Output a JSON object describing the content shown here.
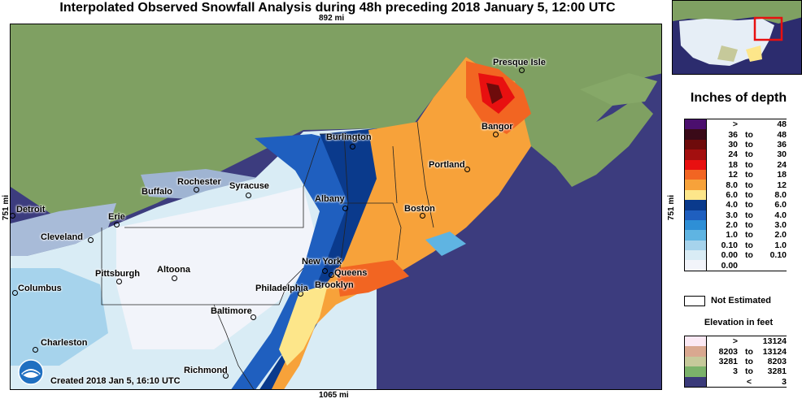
{
  "title": "Interpolated Observed Snowfall Analysis during 48h preceding 2018 January 5, 12:00 UTC",
  "dimensions": {
    "top": "892 mi",
    "bottom": "1065 mi",
    "left": "751 mi",
    "right": "751 mi"
  },
  "created": "Created 2018 Jan 5, 16:10 UTC",
  "cities": [
    {
      "name": "Presque Isle"
    },
    {
      "name": "Bangor"
    },
    {
      "name": "Burlington"
    },
    {
      "name": "Portland"
    },
    {
      "name": "Rochester"
    },
    {
      "name": "Syracuse"
    },
    {
      "name": "Buffalo"
    },
    {
      "name": "Albany"
    },
    {
      "name": "Boston"
    },
    {
      "name": "Detroit"
    },
    {
      "name": "Erie"
    },
    {
      "name": "Cleveland"
    },
    {
      "name": "New York"
    },
    {
      "name": "Queens"
    },
    {
      "name": "Pittsburgh"
    },
    {
      "name": "Altoona"
    },
    {
      "name": "Brooklyn"
    },
    {
      "name": "Columbus"
    },
    {
      "name": "Philadelphia"
    },
    {
      "name": "Baltimore"
    },
    {
      "name": "Charleston"
    },
    {
      "name": "Richmond"
    }
  ],
  "legend": {
    "title": "Inches of depth",
    "rows": [
      {
        "lo": ">",
        "to": "",
        "hi": "48",
        "color": "#4b0f6e"
      },
      {
        "lo": "36",
        "to": "to",
        "hi": "48",
        "color": "#3a0a18"
      },
      {
        "lo": "30",
        "to": "to",
        "hi": "36",
        "color": "#6e0b0b"
      },
      {
        "lo": "24",
        "to": "to",
        "hi": "30",
        "color": "#a30f0f"
      },
      {
        "lo": "18",
        "to": "to",
        "hi": "24",
        "color": "#e81010"
      },
      {
        "lo": "12",
        "to": "to",
        "hi": "18",
        "color": "#f26522"
      },
      {
        "lo": "8.0",
        "to": "to",
        "hi": "12",
        "color": "#f7a23a"
      },
      {
        "lo": "6.0",
        "to": "to",
        "hi": "8.0",
        "color": "#fde68a"
      },
      {
        "lo": "4.0",
        "to": "to",
        "hi": "6.0",
        "color": "#0a3a8c"
      },
      {
        "lo": "3.0",
        "to": "to",
        "hi": "4.0",
        "color": "#1f5fbf"
      },
      {
        "lo": "2.0",
        "to": "to",
        "hi": "3.0",
        "color": "#2e8fd6"
      },
      {
        "lo": "1.0",
        "to": "to",
        "hi": "2.0",
        "color": "#5fb4e2"
      },
      {
        "lo": "0.10",
        "to": "to",
        "hi": "1.0",
        "color": "#a6d3ec"
      },
      {
        "lo": "0.00",
        "to": "to",
        "hi": "0.10",
        "color": "#d9ecf5"
      },
      {
        "lo": "0.00",
        "to": "",
        "hi": "",
        "color": "#f2f4fa"
      }
    ],
    "not_estimated": "Not Estimated"
  },
  "elevation": {
    "title": "Elevation in feet",
    "rows": [
      {
        "lo": ">",
        "to": "",
        "hi": "13124",
        "color": "#fbe9f4"
      },
      {
        "lo": "8203",
        "to": "to",
        "hi": "13124",
        "color": "#d9a890"
      },
      {
        "lo": "3281",
        "to": "to",
        "hi": "8203",
        "color": "#c6c99a"
      },
      {
        "lo": "3",
        "to": "to",
        "hi": "3281",
        "color": "#7bb26a"
      },
      {
        "lo": "",
        "to": "<",
        "hi": "3",
        "color": "#3a3a7a"
      }
    ]
  }
}
